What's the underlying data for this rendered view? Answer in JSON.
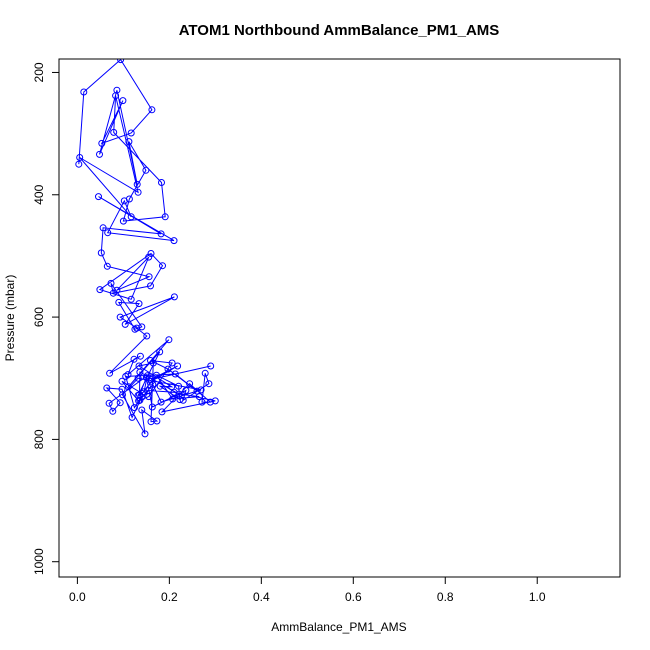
{
  "chart_data": {
    "type": "line",
    "title": "ATOM1 Northbound AmmBalance_PM1_AMS",
    "xlabel": "AmmBalance_PM1_AMS",
    "ylabel": "Pressure (mbar)",
    "xlim": [
      -0.04,
      1.18
    ],
    "ylim": [
      1025,
      178
    ],
    "y_axis_reversed": true,
    "xticks": [
      0.0,
      0.2,
      0.4,
      0.6,
      0.8,
      1.0
    ],
    "xtick_labels": [
      "0.0",
      "0.2",
      "0.4",
      "0.6",
      "0.8",
      "1.0"
    ],
    "yticks": [
      200,
      400,
      600,
      800,
      1000
    ],
    "ytick_labels": [
      "200",
      "400",
      "600",
      "800",
      "1000"
    ],
    "grid": false,
    "series": [
      {
        "color": "#0000ff",
        "marker": "open-circle",
        "x": [
          0.003,
          0.014,
          0.094,
          0.162,
          0.117,
          0.053,
          0.099,
          0.048,
          0.086,
          0.13,
          0.112,
          0.149,
          0.113,
          0.1,
          0.191,
          0.183,
          0.079,
          0.083,
          0.132,
          0.005,
          0.117,
          0.102,
          0.066,
          0.21,
          0.046,
          0.182,
          0.056,
          0.052,
          0.065,
          0.156,
          0.086,
          0.155,
          0.117,
          0.049,
          0.16,
          0.185,
          0.159,
          0.078,
          0.073,
          0.14,
          0.125,
          0.09,
          0.134,
          0.104,
          0.211,
          0.093,
          0.129,
          0.151,
          0.07,
          0.137,
          0.123,
          0.11,
          0.199,
          0.111,
          0.179,
          0.132,
          0.145,
          0.152,
          0.069,
          0.077,
          0.093,
          0.064,
          0.097,
          0.119,
          0.14,
          0.124,
          0.105,
          0.213,
          0.26,
          0.197,
          0.159,
          0.206,
          0.155,
          0.136,
          0.164,
          0.182,
          0.269,
          0.132,
          0.098,
          0.147,
          0.14,
          0.173,
          0.16,
          0.165,
          0.134,
          0.205,
          0.18,
          0.223,
          0.22,
          0.172,
          0.207,
          0.265,
          0.221,
          0.136,
          0.135,
          0.15,
          0.163,
          0.236,
          0.23,
          0.286,
          0.278,
          0.271,
          0.289,
          0.244,
          0.184,
          0.3,
          0.21,
          0.155,
          0.133,
          0.097,
          0.141,
          0.161,
          0.218,
          0.16,
          0.29
        ],
        "y": [
          350,
          232,
          179,
          261,
          299,
          316,
          246,
          334,
          229,
          383,
          313,
          360,
          407,
          443,
          436,
          380,
          298,
          238,
          396,
          339,
          436,
          410,
          462,
          475,
          403,
          464,
          454,
          495,
          517,
          534,
          556,
          502,
          571,
          555,
          496,
          516,
          549,
          561,
          545,
          616,
          620,
          576,
          578,
          612,
          567,
          600,
          618,
          631,
          692,
          664,
          669,
          694,
          637,
          714,
          657,
          728,
          722,
          696,
          741,
          754,
          740,
          716,
          718,
          764,
          731,
          748,
          697,
          693,
          721,
          685,
          671,
          675,
          730,
          736,
          710,
          739,
          719,
          700,
          727,
          791,
          752,
          770,
          771,
          675,
          680,
          714,
          713,
          735,
          713,
          695,
          734,
          730,
          726,
          690,
          727,
          699,
          747,
          720,
          736,
          709,
          692,
          739,
          739,
          709,
          755,
          737,
          723,
          720,
          737,
          705,
          725,
          705,
          680,
          702,
          680
        ]
      }
    ]
  }
}
